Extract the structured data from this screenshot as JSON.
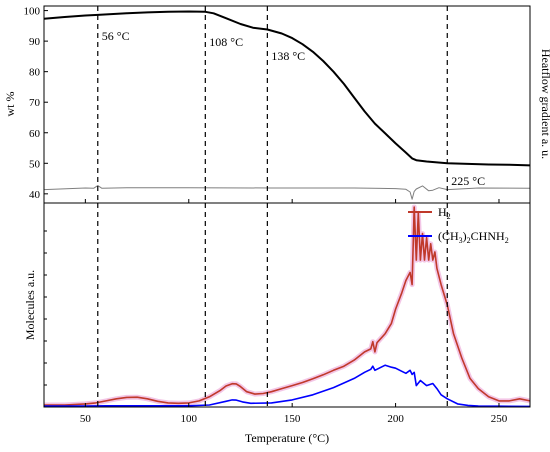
{
  "chart_data": [
    {
      "type": "line",
      "panel": "top",
      "xlabel": "Temperature (°C)",
      "ylabel": "wt %",
      "ylabel_right": "Heatflow gradient a. u.",
      "xlim": [
        30,
        265
      ],
      "ylim": [
        37,
        101.5
      ],
      "yticks": [
        40,
        50,
        60,
        70,
        80,
        90,
        100
      ],
      "ytick_labels": [
        "40",
        "50",
        "60",
        "70",
        "80",
        "90",
        "100"
      ],
      "grid": false,
      "series": [
        {
          "role": "weight",
          "color": "#000000",
          "x": [
            30,
            40,
            50,
            56,
            70,
            80,
            90,
            100,
            108,
            112,
            118,
            125,
            131,
            138,
            145,
            150,
            155,
            160,
            165,
            170,
            175,
            180,
            185,
            190,
            195,
            200,
            205,
            208,
            210,
            215,
            220,
            225,
            235,
            245,
            255,
            265
          ],
          "y": [
            97.3,
            97.9,
            98.4,
            98.6,
            99.1,
            99.4,
            99.6,
            99.7,
            99.6,
            99.1,
            97.5,
            95.6,
            94.4,
            93.8,
            92.5,
            91.0,
            89.0,
            86.5,
            83.5,
            80.0,
            76.0,
            71.5,
            67.0,
            63.0,
            59.8,
            56.5,
            53.5,
            51.6,
            51.0,
            50.6,
            50.3,
            50.0,
            49.8,
            49.6,
            49.5,
            49.3
          ]
        },
        {
          "role": "heatflow-gradient",
          "color": "#7f7f7f",
          "x": [
            30,
            50,
            54,
            56,
            58,
            70,
            100,
            140,
            180,
            200,
            205,
            207,
            208,
            209,
            210,
            213,
            216,
            218,
            221,
            225,
            240,
            265
          ],
          "y": [
            41.4,
            41.9,
            41.8,
            42.7,
            41.8,
            42.0,
            42.0,
            41.9,
            41.9,
            41.7,
            41.5,
            40.6,
            38.2,
            40.8,
            41.6,
            42.6,
            41.0,
            41.2,
            42.0,
            41.4,
            41.9,
            41.8
          ]
        }
      ],
      "annotations": [
        {
          "label": "56 °C",
          "x": 56
        },
        {
          "label": "108 °C",
          "x": 108
        },
        {
          "label": "138 °C",
          "x": 138
        },
        {
          "label": "225 °C",
          "x": 225
        }
      ]
    },
    {
      "type": "line",
      "panel": "bottom",
      "xlabel": "Temperature (°C)",
      "ylabel": "Molecules a.u.",
      "xlim": [
        30,
        265
      ],
      "ylim": [
        0,
        100
      ],
      "xticks": [
        50,
        100,
        150,
        200,
        250
      ],
      "xtick_labels": [
        "50",
        "100",
        "150",
        "200",
        "250"
      ],
      "grid": false,
      "legend_position": "top-right",
      "series": [
        {
          "name": "H2",
          "legend_main": "H",
          "legend_sub": "2",
          "color": "#c0392b",
          "x": [
            30,
            40,
            50,
            55,
            60,
            65,
            70,
            75,
            80,
            85,
            90,
            95,
            100,
            105,
            110,
            115,
            118,
            121,
            123,
            125,
            128,
            132,
            136,
            140,
            145,
            150,
            155,
            160,
            165,
            170,
            175,
            180,
            185,
            188,
            189,
            190,
            191,
            195,
            198,
            200,
            203,
            205,
            207,
            208,
            209,
            210,
            211,
            212,
            213,
            214,
            215,
            216,
            217,
            218,
            219,
            220,
            222,
            225,
            228,
            232,
            236,
            240,
            245,
            250,
            255,
            260,
            265
          ],
          "y": [
            1.0,
            1.0,
            1.5,
            2.0,
            3.0,
            4.0,
            4.7,
            4.8,
            4.0,
            2.8,
            2.0,
            1.8,
            2.0,
            3.0,
            5.0,
            8.0,
            10.3,
            11.4,
            11.3,
            10.0,
            7.5,
            6.3,
            6.6,
            7.5,
            9.0,
            10.5,
            12.0,
            13.8,
            15.8,
            18.0,
            20.0,
            23.0,
            27.0,
            28.5,
            32.0,
            27.0,
            31.5,
            36.0,
            41.0,
            48.0,
            56.0,
            62.0,
            66.0,
            60.0,
            98.0,
            72.0,
            95.0,
            72.0,
            85.0,
            72.0,
            83.0,
            72.0,
            80.0,
            72.0,
            76.0,
            68.0,
            60.0,
            50.0,
            36.0,
            24.0,
            14.0,
            9.0,
            5.0,
            3.0,
            3.0,
            4.0,
            3.0
          ]
        },
        {
          "name": "(CH3)2CHNH2",
          "legend_parts": [
            {
              "t": "(CH",
              "sub": false
            },
            {
              "t": "3",
              "sub": true
            },
            {
              "t": ")",
              "sub": false
            },
            {
              "t": "2",
              "sub": true
            },
            {
              "t": "CHNH",
              "sub": false
            },
            {
              "t": "2",
              "sub": true
            }
          ],
          "color": "#0000ff",
          "x": [
            30,
            50,
            60,
            80,
            100,
            110,
            118,
            121,
            123,
            126,
            130,
            140,
            150,
            160,
            170,
            180,
            185,
            188,
            189,
            190,
            195,
            198,
            200,
            203,
            205,
            207,
            208,
            209,
            210,
            212,
            215,
            218,
            220,
            222,
            225,
            230,
            235,
            240,
            250,
            265
          ],
          "y": [
            0.5,
            0.5,
            0.6,
            0.6,
            0.6,
            1.0,
            2.8,
            3.5,
            3.4,
            2.5,
            1.8,
            2.0,
            3.5,
            6.0,
            9.5,
            14.0,
            17.0,
            18.5,
            20.0,
            18.0,
            20.5,
            19.5,
            19.0,
            17.5,
            16.5,
            18.0,
            16.0,
            17.0,
            10.5,
            13.0,
            10.5,
            11.5,
            9.0,
            6.0,
            4.0,
            1.5,
            0.8,
            0.5,
            0.4,
            0.3
          ]
        }
      ],
      "annotations_x": [
        56,
        108,
        138,
        225
      ]
    }
  ]
}
